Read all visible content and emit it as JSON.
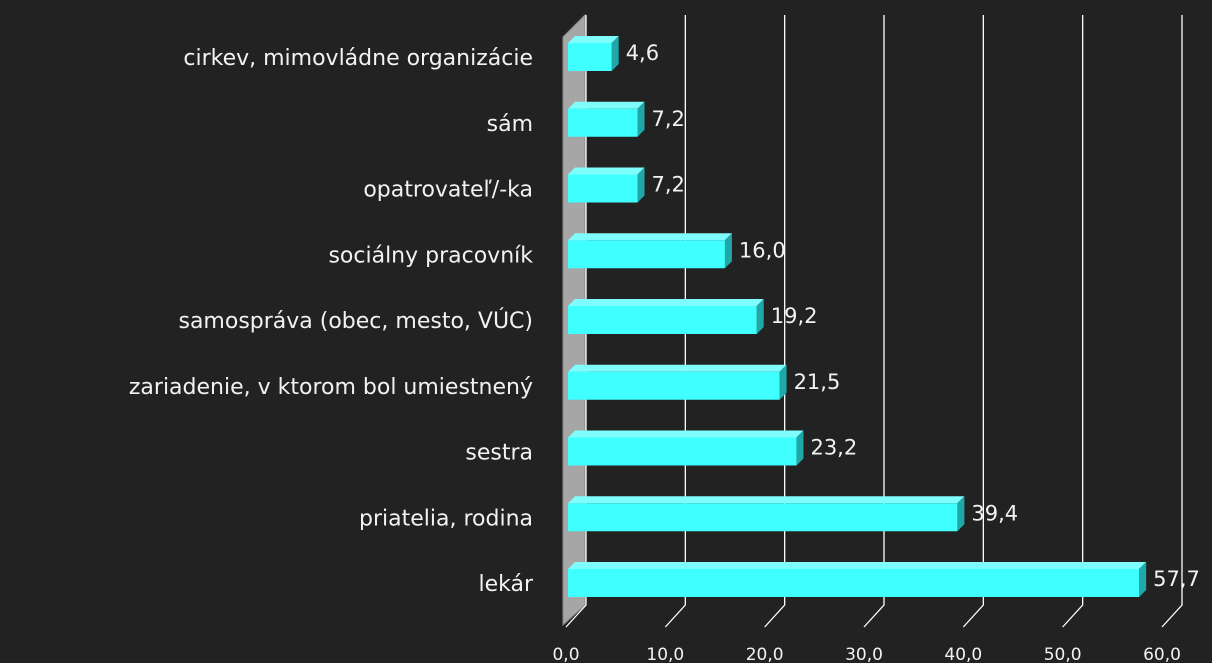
{
  "chart_data": {
    "type": "bar",
    "orientation": "horizontal",
    "categories": [
      "cirkev, mimovládne organizácie",
      "sám ",
      "opatrovateľ/-ka",
      "sociálny pracovník",
      "samospráva (obec, mesto, VÚC)",
      "zariadenie, v ktorom bol umiestnený",
      "sestra",
      "priatelia, rodina",
      "lekár"
    ],
    "values": [
      4.6,
      7.2,
      7.2,
      16.0,
      19.2,
      21.5,
      23.2,
      39.4,
      57.7
    ],
    "value_labels": [
      "4,6",
      "7,2",
      "7,2",
      "16,0",
      "19,2",
      "21,5",
      "23,2",
      "39,4",
      "57,7"
    ],
    "color": "#40ffff",
    "xlim": [
      0,
      60
    ],
    "xticks": [
      {
        "value": 0,
        "label": "0,0"
      },
      {
        "value": 10,
        "label": "10,0"
      },
      {
        "value": 20,
        "label": "20,0"
      },
      {
        "value": 30,
        "label": "30,0"
      },
      {
        "value": 40,
        "label": "40,0"
      },
      {
        "value": 50,
        "label": "50,0"
      },
      {
        "value": 60,
        "label": "60,0"
      }
    ],
    "grid": true
  }
}
